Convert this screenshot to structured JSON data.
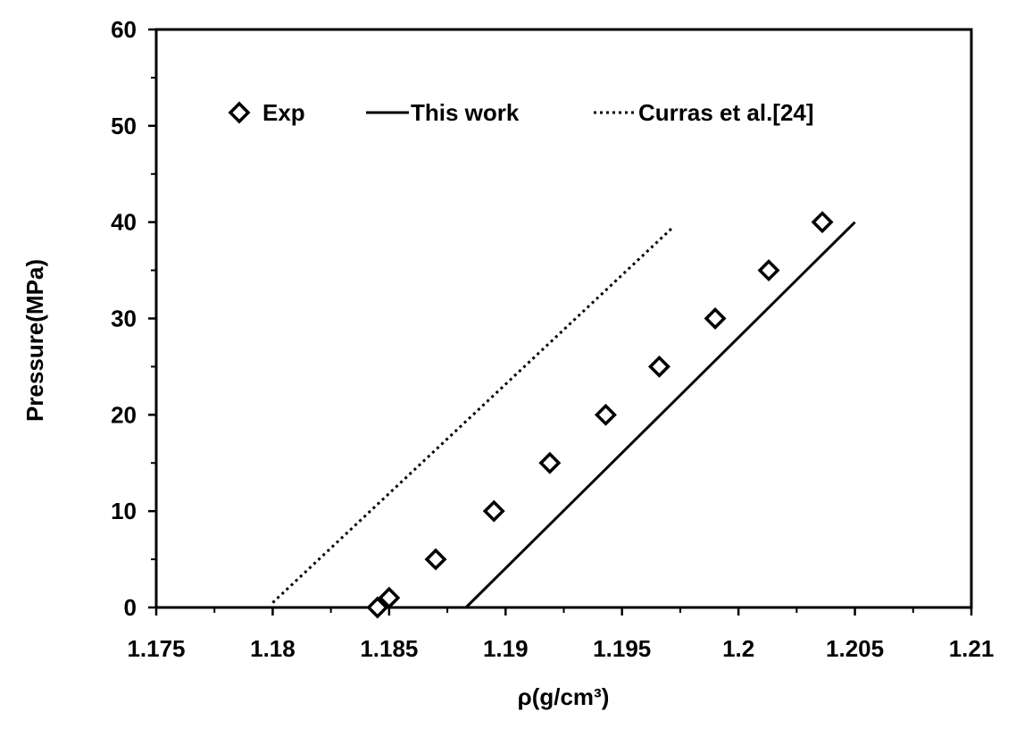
{
  "chart_data": {
    "type": "scatter",
    "xlabel": "ρ(g/cm³)",
    "ylabel": "Pressure(MPa)",
    "xlim": [
      1.175,
      1.21
    ],
    "ylim": [
      0,
      60
    ],
    "x_ticks": [
      1.175,
      1.18,
      1.185,
      1.19,
      1.195,
      1.2,
      1.205,
      1.21
    ],
    "x_tick_labels": [
      "1.175",
      "1.18",
      "1.185",
      "1.19",
      "1.195",
      "1.2",
      "1.205",
      "1.21"
    ],
    "y_ticks": [
      0,
      10,
      20,
      30,
      40,
      50,
      60
    ],
    "y_tick_labels": [
      "0",
      "10",
      "20",
      "30",
      "40",
      "50",
      "60"
    ],
    "grid": false,
    "legend_position": "top",
    "series": [
      {
        "name": "Exp",
        "style": "diamond-markers",
        "x": [
          1.1845,
          1.185,
          1.187,
          1.1895,
          1.1919,
          1.1943,
          1.1966,
          1.199,
          1.2013,
          1.2036
        ],
        "y": [
          0,
          1,
          5,
          10,
          15,
          20,
          25,
          30,
          35,
          40
        ]
      },
      {
        "name": "This work",
        "style": "solid-line",
        "x": [
          1.1883,
          1.205
        ],
        "y": [
          0,
          40
        ]
      },
      {
        "name": "Curras et al.[24]",
        "style": "dotted-line",
        "x": [
          1.18,
          1.1972
        ],
        "y": [
          0.5,
          39.5
        ]
      }
    ]
  }
}
